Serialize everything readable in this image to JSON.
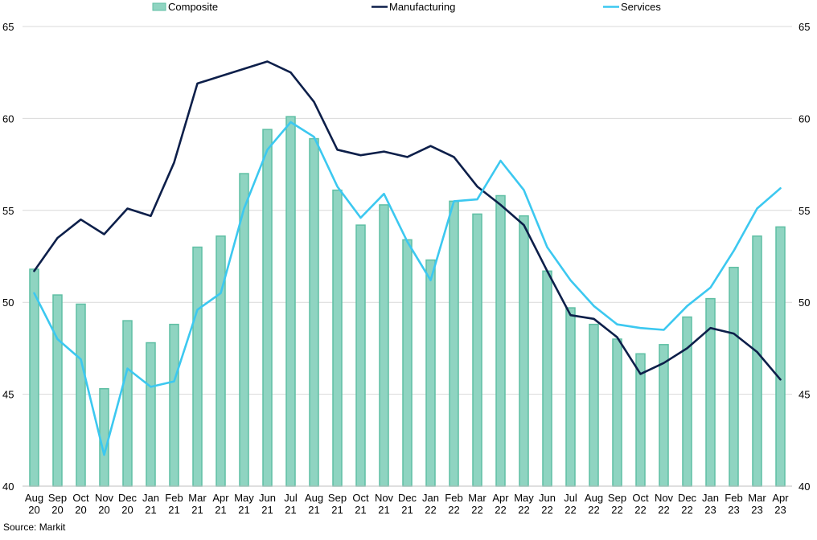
{
  "source": "Source: Markit",
  "chart_data": {
    "type": "bar",
    "categories": [
      [
        "Aug",
        "20"
      ],
      [
        "Sep",
        "20"
      ],
      [
        "Oct",
        "20"
      ],
      [
        "Nov",
        "20"
      ],
      [
        "Dec",
        "20"
      ],
      [
        "Jan",
        "21"
      ],
      [
        "Feb",
        "21"
      ],
      [
        "Mar",
        "21"
      ],
      [
        "Apr",
        "21"
      ],
      [
        "May",
        "21"
      ],
      [
        "Jun",
        "21"
      ],
      [
        "Jul",
        "21"
      ],
      [
        "Aug",
        "21"
      ],
      [
        "Sep",
        "21"
      ],
      [
        "Oct",
        "21"
      ],
      [
        "Nov",
        "21"
      ],
      [
        "Dec",
        "21"
      ],
      [
        "Jan",
        "22"
      ],
      [
        "Feb",
        "22"
      ],
      [
        "Mar",
        "22"
      ],
      [
        "Apr",
        "22"
      ],
      [
        "May",
        "22"
      ],
      [
        "Jun",
        "22"
      ],
      [
        "Jul",
        "22"
      ],
      [
        "Aug",
        "22"
      ],
      [
        "Sep",
        "22"
      ],
      [
        "Oct",
        "22"
      ],
      [
        "Nov",
        "22"
      ],
      [
        "Dec",
        "22"
      ],
      [
        "Jan",
        "23"
      ],
      [
        "Feb",
        "23"
      ],
      [
        "Mar",
        "23"
      ],
      [
        "Apr",
        "23"
      ]
    ],
    "ylim": [
      40,
      65
    ],
    "yticks": [
      40,
      45,
      50,
      55,
      60,
      65
    ],
    "grid": true,
    "legend_position": "top",
    "series": [
      {
        "name": "Composite",
        "kind": "bar",
        "color": "#8fd4c1",
        "edge": "#5fbfa4",
        "values": [
          51.8,
          50.4,
          49.9,
          45.3,
          49.0,
          47.8,
          48.8,
          53.0,
          53.6,
          57.0,
          59.4,
          60.1,
          58.9,
          56.1,
          54.2,
          55.3,
          53.4,
          52.3,
          55.5,
          54.8,
          55.8,
          54.7,
          51.7,
          49.7,
          48.8,
          48.0,
          47.2,
          47.7,
          49.2,
          50.2,
          51.9,
          53.6,
          54.1
        ]
      },
      {
        "name": "Manufacturing",
        "kind": "line",
        "color": "#0d1f4a",
        "values": [
          51.7,
          53.5,
          54.5,
          53.7,
          55.1,
          54.7,
          57.6,
          61.9,
          62.3,
          62.7,
          63.1,
          62.5,
          60.9,
          58.3,
          58.0,
          58.2,
          57.9,
          58.5,
          57.9,
          56.3,
          55.3,
          54.2,
          51.7,
          49.3,
          49.1,
          48.1,
          46.1,
          46.7,
          47.5,
          48.6,
          48.3,
          47.3,
          45.8
        ]
      },
      {
        "name": "Services",
        "kind": "line",
        "color": "#3cc8f0",
        "values": [
          50.5,
          48.0,
          46.9,
          41.7,
          46.4,
          45.4,
          45.7,
          49.6,
          50.5,
          55.1,
          58.3,
          59.8,
          59.0,
          56.3,
          54.6,
          55.9,
          53.3,
          51.2,
          55.5,
          55.6,
          57.7,
          56.1,
          53.0,
          51.2,
          49.8,
          48.8,
          48.6,
          48.5,
          49.8,
          50.8,
          52.8,
          55.1,
          56.2
        ]
      }
    ]
  }
}
